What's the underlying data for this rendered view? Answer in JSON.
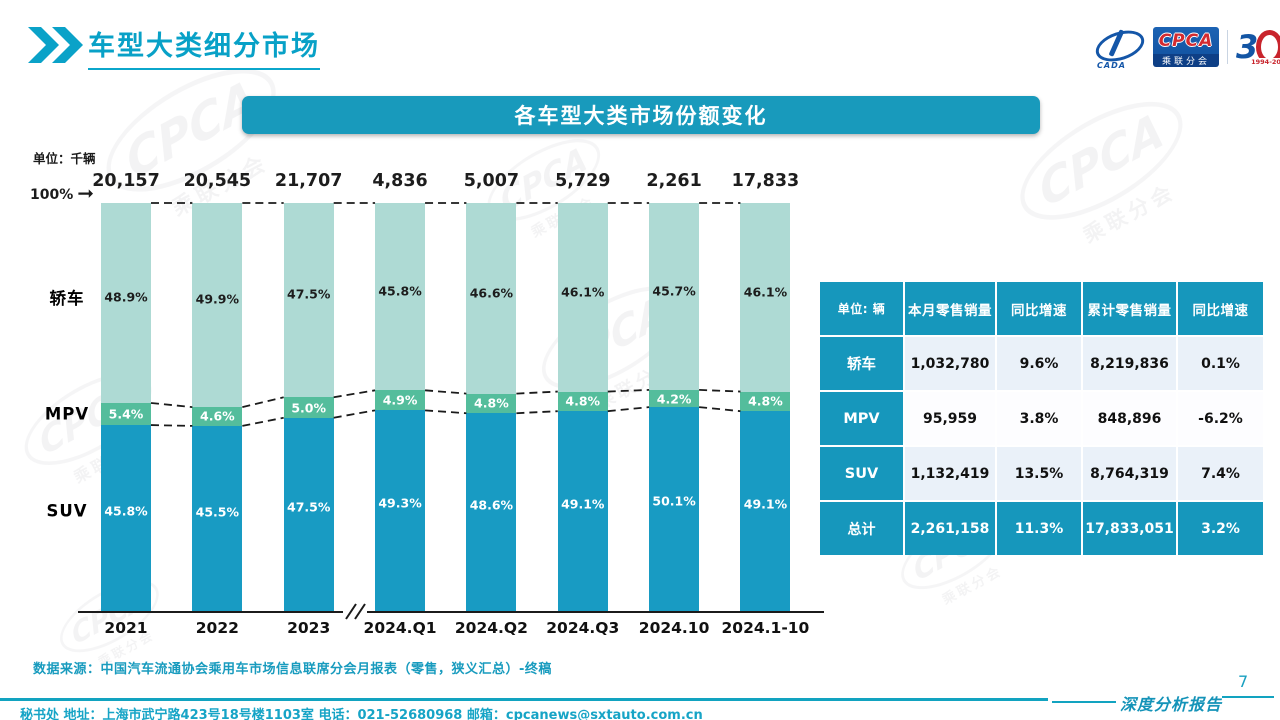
{
  "page": {
    "title": "车型大类细分市场",
    "source_note": "数据来源：中国汽车流通协会乘用车市场信息联席分会月报表（零售，狭义汇总）-终稿",
    "footer_text": "秘书处  地址：上海市武宁路423号18号楼1103室 电话：021-52680968  邮箱：cpcanews@sxtauto.com.cn",
    "report_label": "深度分析报告",
    "page_number": "7"
  },
  "logo": {
    "cpca": "CPCA",
    "subtitle": "乘联分会",
    "cada": "CADA",
    "anniversary_number_left": "3",
    "anniversary_years": "1994-2024",
    "watermark_text": "CPCA",
    "watermark_subtext": "乘联分会"
  },
  "chart_data": {
    "type": "bar",
    "stacked": true,
    "title": "各车型大类市场份额变化",
    "unit_label": "单位：千辆",
    "y_axis_top_label": "100%",
    "ylim": [
      0,
      100
    ],
    "grid": false,
    "legend_position": "left-of-bars",
    "categories": [
      "2021",
      "2022",
      "2023",
      "2024.Q1",
      "2024.Q2",
      "2024.Q3",
      "2024.10",
      "2024.1-10"
    ],
    "totals": [
      "20,157",
      "20,545",
      "21,707",
      "4,836",
      "5,007",
      "5,729",
      "2,261",
      "17,833"
    ],
    "axis_break_after_index": 2,
    "series": [
      {
        "name": "轿车",
        "color": "#AEDAD4",
        "text_color": "#1d1d1d",
        "values": [
          48.9,
          49.9,
          47.5,
          45.8,
          46.6,
          46.1,
          45.7,
          46.1
        ]
      },
      {
        "name": "MPV",
        "color": "#54BD9C",
        "text_color": "#ffffff",
        "values": [
          5.4,
          4.6,
          5.0,
          4.9,
          4.8,
          4.8,
          4.2,
          4.8
        ]
      },
      {
        "name": "SUV",
        "color": "#189BC3",
        "text_color": "#ffffff",
        "values": [
          45.8,
          45.5,
          47.5,
          49.3,
          48.6,
          49.1,
          50.1,
          49.1
        ]
      }
    ]
  },
  "table": {
    "unit_header": "单位: 辆",
    "columns": [
      "本月零售销量",
      "同比增速",
      "累计零售销量",
      "同比增速"
    ],
    "rows": [
      {
        "label": "轿车",
        "cells": [
          "1,032,780",
          "9.6%",
          "8,219,836",
          "0.1%"
        ],
        "highlight": false
      },
      {
        "label": "MPV",
        "cells": [
          "95,959",
          "3.8%",
          "848,896",
          "-6.2%"
        ],
        "highlight": false
      },
      {
        "label": "SUV",
        "cells": [
          "1,132,419",
          "13.5%",
          "8,764,319",
          "7.4%"
        ],
        "highlight": false
      },
      {
        "label": "总计",
        "cells": [
          "2,261,158",
          "11.3%",
          "17,833,051",
          "3.2%"
        ],
        "highlight": true
      }
    ]
  },
  "colors": {
    "accent_teal": "#149FC2",
    "banner_bg": "#189ABC",
    "table_header_bg": "#1697BC",
    "table_cell_light": "#EAF1F9",
    "title_teal": "#08A1C7",
    "dash_line": "#1b1b1b"
  }
}
